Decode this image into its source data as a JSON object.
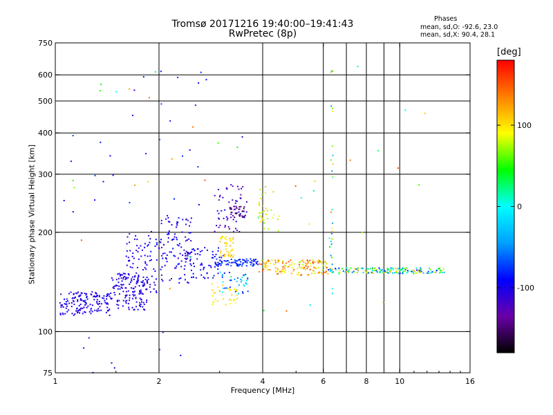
{
  "header": {
    "title_line1": "Tromsø 20171216 19:40:00–19:41:43",
    "title_line2": "RwPretec (8p)"
  },
  "stats": {
    "heading": "Phases",
    "line1": "mean, sd,O: -92.6, 23.0",
    "line2": "mean, sd,X:  90.4, 28.1"
  },
  "chart_data": {
    "type": "scatter",
    "title": "Tromsø 20171216 19:40:00–19:41:43",
    "subtitle": "RwPretec (8p)",
    "xlabel": "Frequency [MHz]",
    "ylabel": "Stationary phase Virtual Height [km]",
    "x_scale": "log",
    "y_scale": "log",
    "xlim": [
      1,
      16
    ],
    "ylim": [
      75,
      750
    ],
    "x_ticks": [
      1,
      2,
      4,
      6,
      8,
      10,
      16
    ],
    "y_ticks": [
      75,
      100,
      200,
      300,
      400,
      500,
      600,
      750
    ],
    "x_gridlines": [
      2,
      4,
      6,
      7,
      8,
      9,
      10
    ],
    "y_gridlines": [
      100,
      200,
      300,
      400,
      500,
      600
    ],
    "grid": true,
    "colorbar": {
      "unit": "[deg]",
      "range": [
        -180,
        180
      ],
      "ticks": [
        100,
        0,
        -100
      ],
      "colors": [
        "#000000",
        "#6a00a8",
        "#0000ff",
        "#00a0ff",
        "#00ffff",
        "#00ff00",
        "#ffff00",
        "#ff8000",
        "#ff0000"
      ]
    },
    "series": [
      {
        "mode": "O",
        "clusters": [
          {
            "f": [
              1.03,
              1.45
            ],
            "h": [
              112,
              132
            ],
            "phase": [
              -115,
              -90
            ],
            "n": 150
          },
          {
            "f": [
              1.45,
              1.85
            ],
            "h": [
              116,
              150
            ],
            "phase": [
              -120,
              -90
            ],
            "n": 130
          },
          {
            "f": [
              1.6,
              2.0
            ],
            "h": [
              128,
              205
            ],
            "phase": [
              -115,
              -85
            ],
            "n": 90
          },
          {
            "f": [
              2.0,
              2.5
            ],
            "h": [
              140,
              225
            ],
            "phase": [
              -120,
              -85
            ],
            "n": 110
          },
          {
            "f": [
              2.4,
              3.1
            ],
            "h": [
              145,
              180
            ],
            "phase": [
              -110,
              -80
            ],
            "n": 70
          },
          {
            "f": [
              2.9,
              3.6
            ],
            "h": [
              200,
              280
            ],
            "phase": [
              -140,
              -95
            ],
            "n": 60
          },
          {
            "f": [
              3.2,
              3.55
            ],
            "h": [
              222,
              240
            ],
            "phase": [
              -160,
              -130
            ],
            "n": 30
          },
          {
            "f": [
              2.9,
              3.9
            ],
            "h": [
              158,
              166
            ],
            "phase": [
              -100,
              -60
            ],
            "n": 80
          },
          {
            "f": [
              3.0,
              3.7
            ],
            "h": [
              130,
              152
            ],
            "phase": [
              -90,
              20
            ],
            "n": 40
          },
          {
            "f": [
              1.05,
              3.5
            ],
            "h": [
              230,
              620
            ],
            "phase": [
              -110,
              -70
            ],
            "n": 30
          },
          {
            "f": [
              1.1,
              2.6
            ],
            "h": [
              75,
              100
            ],
            "phase": [
              -110,
              -80
            ],
            "n": 8
          }
        ]
      },
      {
        "mode": "X",
        "clusters": [
          {
            "f": [
              3.0,
              3.3
            ],
            "h": [
              168,
              195
            ],
            "phase": [
              90,
              120
            ],
            "n": 40
          },
          {
            "f": [
              3.9,
              6.2
            ],
            "h": [
              148,
              165
            ],
            "phase": [
              70,
              160
            ],
            "n": 140
          },
          {
            "f": [
              6.2,
              13.5
            ],
            "h": [
              150,
              156
            ],
            "phase": [
              -90,
              120
            ],
            "n": 170
          },
          {
            "f": [
              3.9,
              4.1
            ],
            "h": [
              200,
              275
            ],
            "phase": [
              60,
              110
            ],
            "n": 25
          },
          {
            "f": [
              4.1,
              4.5
            ],
            "h": [
              200,
              240
            ],
            "phase": [
              60,
              100
            ],
            "n": 10
          },
          {
            "f": [
              2.8,
              3.4
            ],
            "h": [
              120,
              140
            ],
            "phase": [
              80,
              110
            ],
            "n": 30
          },
          {
            "f": [
              6.3,
              6.4
            ],
            "h": [
              130,
              620
            ],
            "phase": [
              -60,
              140
            ],
            "n": 30
          },
          {
            "f": [
              1.0,
              12.0
            ],
            "h": [
              110,
              640
            ],
            "phase": [
              -20,
              160
            ],
            "n": 40
          }
        ]
      }
    ]
  }
}
